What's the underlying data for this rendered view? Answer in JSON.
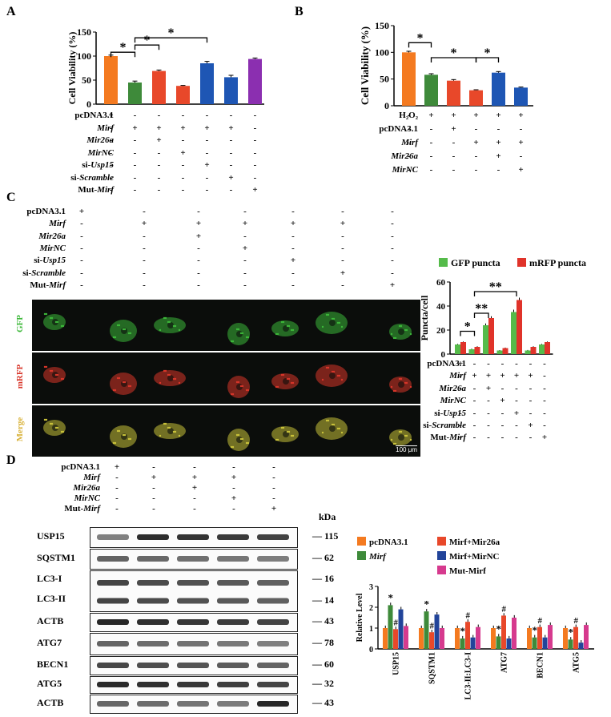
{
  "panels": {
    "A": "A",
    "B": "B",
    "C": "C",
    "D": "D"
  },
  "colors": {
    "orange": "#f47a20",
    "green": "#3e8a3a",
    "red": "#e8482a",
    "blue": "#1e56b4",
    "purple": "#8b2fb0",
    "lightgreen": "#55bb4a",
    "brightred": "#e0332a",
    "darkblue": "#22449a",
    "magenta": "#d63a8e"
  },
  "panelA": {
    "table": [
      {
        "label": "pcDNA3.1",
        "italic": false,
        "signs": [
          "+",
          "-",
          "-",
          "-",
          "-",
          "-",
          "-"
        ]
      },
      {
        "label": "Mirf",
        "italic": true,
        "signs": [
          "-",
          "+",
          "+",
          "+",
          "+",
          "+",
          "-"
        ]
      },
      {
        "label": "Mir26a",
        "italic": true,
        "signs": [
          "-",
          "-",
          "+",
          "-",
          "-",
          "-",
          "-"
        ]
      },
      {
        "label": "MirNC",
        "italic": true,
        "signs": [
          "-",
          "-",
          "-",
          "+",
          "-",
          "-",
          "-"
        ]
      },
      {
        "prefix": "si-",
        "label": "Usp15",
        "italic": true,
        "signs": [
          "-",
          "-",
          "-",
          "-",
          "+",
          "-",
          "-"
        ]
      },
      {
        "prefix": "si-",
        "label": "Scramble",
        "italic": true,
        "signs": [
          "-",
          "-",
          "-",
          "-",
          "-",
          "+",
          "-"
        ]
      },
      {
        "prefix": "Mut-",
        "label": "Mirf",
        "italic": true,
        "signs": [
          "-",
          "-",
          "-",
          "-",
          "-",
          "-",
          "+"
        ]
      }
    ]
  },
  "panelB": {
    "table": [
      {
        "label": "H₂O₂",
        "italic": false,
        "signs": [
          "-",
          "+",
          "+",
          "+",
          "+",
          "+"
        ]
      },
      {
        "label": "pcDNA3.1",
        "italic": false,
        "signs": [
          "-",
          "-",
          "+",
          "-",
          "-",
          "-"
        ]
      },
      {
        "label": "Mirf",
        "italic": true,
        "signs": [
          "-",
          "-",
          "-",
          "+",
          "+",
          "+"
        ]
      },
      {
        "label": "Mir26a",
        "italic": true,
        "signs": [
          "-",
          "-",
          "-",
          "-",
          "+",
          "-"
        ]
      },
      {
        "label": "MirNC",
        "italic": true,
        "signs": [
          "-",
          "-",
          "-",
          "-",
          "-",
          "+"
        ]
      }
    ]
  },
  "panelC": {
    "table": [
      {
        "label": "pcDNA3.1",
        "italic": false,
        "signs": [
          "+",
          "-",
          "-",
          "-",
          "-",
          "-",
          "-"
        ]
      },
      {
        "label": "Mirf",
        "italic": true,
        "signs": [
          "-",
          "+",
          "+",
          "+",
          "+",
          "+",
          "-"
        ]
      },
      {
        "label": "Mir26a",
        "italic": true,
        "signs": [
          "-",
          "-",
          "+",
          "-",
          "-",
          "-",
          "-"
        ]
      },
      {
        "label": "MirNC",
        "italic": true,
        "signs": [
          "-",
          "-",
          "-",
          "+",
          "-",
          "-",
          "-"
        ]
      },
      {
        "prefix": "si-",
        "label": "Usp15",
        "italic": true,
        "signs": [
          "-",
          "-",
          "-",
          "-",
          "+",
          "-",
          "-"
        ]
      },
      {
        "prefix": "si-",
        "label": "Scramble",
        "italic": true,
        "signs": [
          "-",
          "-",
          "-",
          "-",
          "-",
          "+",
          "-"
        ]
      },
      {
        "prefix": "Mut-",
        "label": "Mirf",
        "italic": true,
        "signs": [
          "-",
          "-",
          "-",
          "-",
          "-",
          "-",
          "+"
        ]
      }
    ],
    "rows": [
      "GFP",
      "mRFP",
      "Merge"
    ],
    "scalebar": "100 μm",
    "chart_table": [
      {
        "label": "pcDNA3.1",
        "italic": false,
        "signs": [
          "+",
          "-",
          "-",
          "-",
          "-",
          "-",
          "-"
        ]
      },
      {
        "label": "Mirf",
        "italic": true,
        "signs": [
          "-",
          "+",
          "+",
          "+",
          "+",
          "+",
          "-"
        ]
      },
      {
        "label": "Mir26a",
        "italic": true,
        "signs": [
          "-",
          "-",
          "+",
          "-",
          "-",
          "-",
          "-"
        ]
      },
      {
        "label": "MirNC",
        "italic": true,
        "signs": [
          "-",
          "-",
          "-",
          "+",
          "-",
          "-",
          "-"
        ]
      },
      {
        "prefix": "si-",
        "label": "Usp15",
        "italic": true,
        "signs": [
          "-",
          "-",
          "-",
          "-",
          "+",
          "-",
          "-"
        ]
      },
      {
        "prefix": "si-",
        "label": "Scramble",
        "italic": true,
        "signs": [
          "-",
          "-",
          "-",
          "-",
          "-",
          "+",
          "-"
        ]
      },
      {
        "prefix": "Mut-",
        "label": "Mirf",
        "italic": true,
        "signs": [
          "-",
          "-",
          "-",
          "-",
          "-",
          "-",
          "+"
        ]
      }
    ]
  },
  "panelD": {
    "table": [
      {
        "label": "pcDNA3.1",
        "italic": false,
        "signs": [
          "+",
          "-",
          "-",
          "-",
          "-"
        ]
      },
      {
        "label": "Mirf",
        "italic": true,
        "signs": [
          "-",
          "+",
          "+",
          "+",
          "-"
        ]
      },
      {
        "label": "Mir26a",
        "italic": true,
        "signs": [
          "-",
          "-",
          "+",
          "-",
          "-"
        ]
      },
      {
        "label": "MirNC",
        "italic": true,
        "signs": [
          "-",
          "-",
          "-",
          "+",
          "-"
        ]
      },
      {
        "prefix": "Mut-",
        "label": "Mirf",
        "italic": true,
        "signs": [
          "-",
          "-",
          "-",
          "-",
          "+"
        ]
      }
    ],
    "kda_header": "kDa",
    "blots": [
      {
        "name": "USP15",
        "kda": "115"
      },
      {
        "name": "SQSTM1",
        "kda": "62"
      },
      {
        "name": "LC3-I",
        "kda": "16",
        "name2": "LC3-II",
        "kda2": "14"
      },
      {
        "name": "ACTB",
        "kda": "43"
      },
      {
        "name": "ATG7",
        "kda": "78"
      },
      {
        "name": "BECN1",
        "kda": "60"
      },
      {
        "name": "ATG5",
        "kda": "32"
      },
      {
        "name": "ACTB",
        "kda": "43"
      }
    ]
  },
  "chart_data": [
    {
      "type": "bar",
      "panel": "A",
      "ylabel": "Cell Viability (%)",
      "ylim": [
        0,
        150
      ],
      "yticks": [
        "0",
        "50",
        "100",
        "150"
      ],
      "values": [
        100,
        45,
        69,
        38,
        85,
        56,
        94
      ],
      "errors": [
        2,
        3,
        2,
        1,
        4,
        4,
        2
      ],
      "colors": [
        "#f47a20",
        "#3e8a3a",
        "#e8482a",
        "#e8482a",
        "#1e56b4",
        "#1e56b4",
        "#8b2fb0"
      ],
      "significance": [
        {
          "from": 0,
          "to": 1,
          "label": "*"
        },
        {
          "from": 1,
          "to": 2,
          "label": "*"
        },
        {
          "from": 1,
          "to": 4,
          "label": "*"
        }
      ]
    },
    {
      "type": "bar",
      "panel": "B",
      "ylabel": "Cell Viability (%)",
      "ylim": [
        0,
        150
      ],
      "yticks": [
        "0",
        "50",
        "100",
        "150"
      ],
      "values": [
        100,
        58,
        47,
        29,
        62,
        34
      ],
      "errors": [
        2,
        2,
        2,
        1,
        2,
        1
      ],
      "colors": [
        "#f47a20",
        "#3e8a3a",
        "#e8482a",
        "#e8482a",
        "#1e56b4",
        "#1e56b4"
      ],
      "significance": [
        {
          "from": 0,
          "to": 1,
          "label": "*"
        },
        {
          "from": 1,
          "to": 3,
          "label": "*"
        },
        {
          "from": 3,
          "to": 4,
          "label": "*"
        }
      ]
    },
    {
      "type": "bar",
      "panel": "C",
      "ylabel": "Puncta/cell",
      "ylim": [
        0,
        60
      ],
      "yticks": [
        "0",
        "20",
        "40",
        "60"
      ],
      "series": [
        {
          "name": "GFP puncta",
          "color": "#55bb4a",
          "values": [
            8,
            4,
            24,
            3,
            35,
            3,
            8
          ],
          "errors": [
            0.5,
            0.5,
            1.5,
            0.3,
            2,
            0.4,
            0.5
          ]
        },
        {
          "name": "mRFP puncta",
          "color": "#e0332a",
          "values": [
            10,
            6,
            30,
            5,
            45,
            6,
            10
          ],
          "errors": [
            0.5,
            0.5,
            1.5,
            0.4,
            2,
            0.5,
            0.5
          ]
        }
      ],
      "significance": [
        {
          "from": 0,
          "to": 1,
          "label": "*"
        },
        {
          "from": 1,
          "to": 2,
          "label": "**"
        },
        {
          "from": 1,
          "to": 4,
          "label": "**"
        }
      ]
    },
    {
      "type": "bar",
      "panel": "D",
      "ylabel": "Relative Level",
      "ylim": [
        0,
        3
      ],
      "yticks": [
        "0",
        "1",
        "2",
        "3"
      ],
      "categories": [
        "USP15",
        "SQSTM1",
        "LC3-II:LC3-I",
        "ATG7",
        "BECN1",
        "ATG5"
      ],
      "series": [
        {
          "name": "pcDNA3.1",
          "color": "#f47a20",
          "values": [
            1,
            1,
            1,
            1,
            1,
            1
          ]
        },
        {
          "name": "Mirf",
          "color": "#3e8a3a",
          "values": [
            2.1,
            1.8,
            0.5,
            0.6,
            0.55,
            0.45
          ]
        },
        {
          "name": "Mirf+Mir26a",
          "color": "#e8482a",
          "values": [
            0.95,
            0.8,
            1.3,
            1.6,
            1.05,
            1.05
          ]
        },
        {
          "name": "Mirf+MirNC",
          "color": "#22449a",
          "values": [
            1.9,
            1.65,
            0.55,
            0.5,
            0.55,
            0.3
          ]
        },
        {
          "name": "Mut-Mirf",
          "color": "#d63a8e",
          "values": [
            1.1,
            1.0,
            1.05,
            1.5,
            1.15,
            1.15
          ]
        }
      ],
      "marks": [
        "*",
        "#"
      ]
    }
  ]
}
